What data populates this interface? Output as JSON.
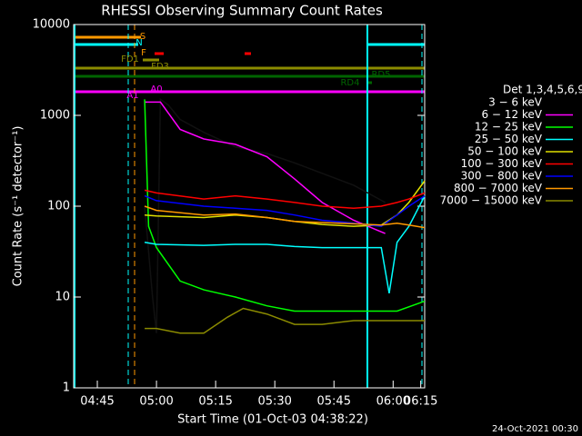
{
  "chart_data": {
    "type": "line",
    "title": "RHESSI Observing Summary Count Rates",
    "xlabel": "Start Time (01-Oct-03 04:38:22)",
    "ylabel": "Count Rate (s⁻¹ detector⁻¹)",
    "footer": "24-Oct-2021 00:30",
    "legend_title": "Det 1,3,4,5,6,9",
    "log_y": true,
    "xlim": [
      39,
      128
    ],
    "ylim": [
      1,
      10000
    ],
    "yticks": [
      1,
      10,
      100,
      1000,
      10000
    ],
    "xticks": [
      {
        "value": 45,
        "label": "04:45"
      },
      {
        "value": 60,
        "label": "05:00"
      },
      {
        "value": 75,
        "label": "05:15"
      },
      {
        "value": 90,
        "label": "05:30"
      },
      {
        "value": 105,
        "label": "05:45"
      },
      {
        "value": 120,
        "label": "06:00"
      },
      {
        "value": 127,
        "label": "06:15"
      }
    ],
    "annotations": [
      "S",
      "N",
      "F",
      "FD1",
      "FD3",
      "RD4",
      "RD5",
      "A1",
      "A0"
    ],
    "series": [
      {
        "name": "3 − 6 keV",
        "color": "#000000",
        "x": [
          57,
          59,
          60,
          61,
          63,
          66,
          72,
          80,
          88,
          95,
          102,
          110,
          118
        ],
        "values": [
          100,
          10,
          4,
          1500,
          1300,
          900,
          650,
          450,
          380,
          300,
          230,
          170,
          110
        ]
      },
      {
        "name": "6 − 12 keV",
        "color": "#ff00ff",
        "x": [
          57,
          61,
          66,
          72,
          80,
          88,
          95,
          102,
          110,
          118
        ],
        "values": [
          1400,
          1400,
          700,
          550,
          480,
          350,
          200,
          110,
          70,
          50
        ]
      },
      {
        "name": "12 − 25 keV",
        "color": "#00ff00",
        "x": [
          57,
          58,
          60,
          66,
          72,
          80,
          88,
          95,
          102,
          110,
          118,
          121,
          128
        ],
        "values": [
          1500,
          60,
          35,
          15,
          12,
          10,
          8,
          7,
          7,
          7,
          7,
          7,
          9
        ]
      },
      {
        "name": "25 − 50 keV",
        "color": "#00ffff",
        "x": [
          57,
          60,
          72,
          80,
          88,
          95,
          102,
          110,
          117,
          119,
          121,
          124,
          128
        ],
        "values": [
          40,
          38,
          37,
          38,
          38,
          36,
          35,
          35,
          35,
          11,
          40,
          60,
          130
        ]
      },
      {
        "name": "50 − 100 keV",
        "color": "#e0e000",
        "x": [
          57,
          60,
          72,
          80,
          88,
          95,
          102,
          110,
          117,
          121,
          124,
          128
        ],
        "values": [
          80,
          78,
          75,
          80,
          75,
          68,
          63,
          60,
          62,
          80,
          110,
          190
        ]
      },
      {
        "name": "100 − 300 keV",
        "color": "#ff0000",
        "x": [
          57,
          60,
          72,
          80,
          88,
          95,
          102,
          110,
          117,
          121,
          124,
          128
        ],
        "values": [
          150,
          140,
          120,
          130,
          120,
          110,
          100,
          95,
          100,
          110,
          120,
          140
        ]
      },
      {
        "name": "300 − 800 keV",
        "color": "#0000ff",
        "x": [
          57,
          60,
          72,
          80,
          88,
          95,
          102,
          110,
          117,
          121,
          124,
          128
        ],
        "values": [
          130,
          115,
          100,
          95,
          90,
          80,
          70,
          65,
          60,
          80,
          100,
          130
        ]
      },
      {
        "name": "800 − 7000 keV",
        "color": "#ff9900",
        "x": [
          57,
          60,
          72,
          80,
          88,
          95,
          102,
          110,
          117,
          121,
          124,
          128
        ],
        "values": [
          100,
          90,
          80,
          82,
          75,
          68,
          66,
          64,
          62,
          65,
          62,
          58
        ]
      },
      {
        "name": "7000 − 15000 keV",
        "color": "#8b8b00",
        "x": [
          57,
          60,
          66,
          72,
          78,
          82,
          88,
          95,
          102,
          110,
          117,
          121,
          128
        ],
        "values": [
          4.5,
          4.5,
          4,
          4,
          6,
          7.5,
          6.5,
          5,
          5,
          5.5,
          5.5,
          5.5,
          5.5
        ]
      }
    ]
  }
}
